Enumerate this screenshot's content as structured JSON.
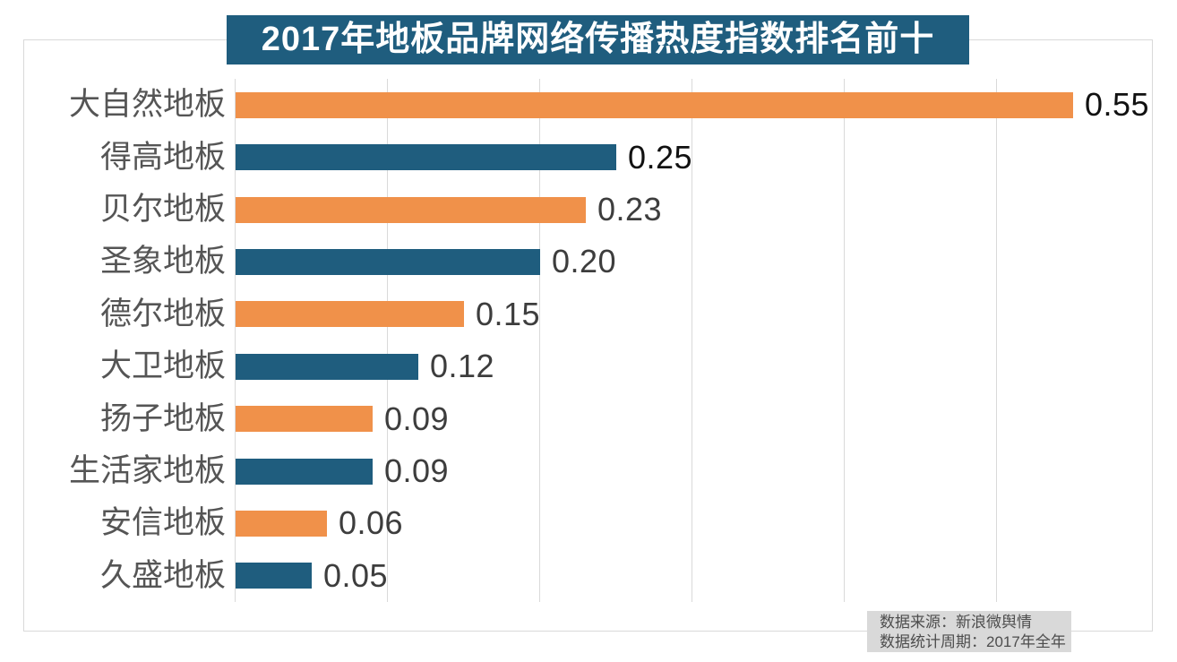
{
  "title": "2017年地板品牌网络传播热度指数排名前十",
  "colors": {
    "banner_bg": "#1f5d7e",
    "bar_blue": "#1f5d7e",
    "bar_orange": "#f0914a",
    "gridline": "#d9d9d9",
    "frame_border": "#d9d9d9",
    "category_label": "#555555",
    "source_bg": "#d9d9d9",
    "source_text": "#4d4d4d",
    "title_text": "#ffffff"
  },
  "chart_data": {
    "type": "bar",
    "orientation": "horizontal",
    "title": "2017年地板品牌网络传播热度指数排名前十",
    "categories": [
      "大自然地板",
      "得高地板",
      "贝尔地板",
      "圣象地板",
      "德尔地板",
      "大卫地板",
      "扬子地板",
      "生活家地板",
      "安信地板",
      "久盛地板"
    ],
    "values": [
      0.55,
      0.25,
      0.23,
      0.2,
      0.15,
      0.12,
      0.09,
      0.09,
      0.06,
      0.05
    ],
    "value_labels": [
      "0.55",
      "0.25",
      "0.23",
      "0.20",
      "0.15",
      "0.12",
      "0.09",
      "0.09",
      "0.06",
      "0.05"
    ],
    "bar_colors": [
      "#f0914a",
      "#1f5d7e",
      "#f0914a",
      "#1f5d7e",
      "#f0914a",
      "#1f5d7e",
      "#f0914a",
      "#1f5d7e",
      "#f0914a",
      "#1f5d7e"
    ],
    "value_label_colors": [
      "#111111",
      "#111111",
      "#3d3d3d",
      "#3d3d3d",
      "#3d3d3d",
      "#3d3d3d",
      "#3d3d3d",
      "#3d3d3d",
      "#3d3d3d",
      "#3d3d3d"
    ],
    "xlabel": "",
    "ylabel": "",
    "xlim": [
      0,
      0.6
    ],
    "grid_step": 0.1,
    "grid": true,
    "legend": false
  },
  "source_note": {
    "line1": "数据来源：新浪微舆情",
    "line2": "数据统计周期：2017年全年"
  }
}
